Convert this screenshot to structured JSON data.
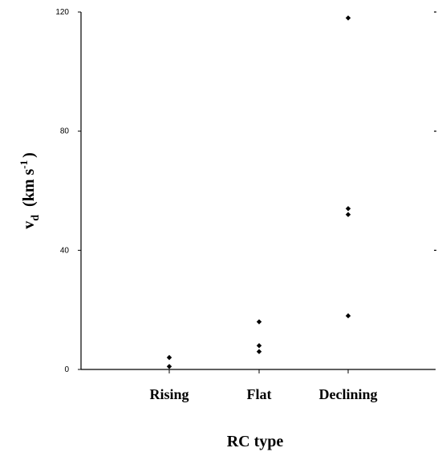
{
  "chart_data": {
    "type": "scatter",
    "title": "",
    "xlabel": "RC type",
    "ylabel": {
      "base": "v",
      "subscript": "d",
      "unit_prefix": "(km s",
      "superscript": "-1",
      "unit_suffix": ")"
    },
    "categories": [
      "Rising",
      "Flat",
      "Declining"
    ],
    "ylim": [
      0,
      120
    ],
    "yticks": [
      0,
      40,
      80,
      120
    ],
    "ytick_labels": [
      "0",
      "40",
      "80",
      "120"
    ],
    "grid": false,
    "legend": "none",
    "marker_color": "#000000",
    "series": [
      {
        "points": [
          {
            "category": "Rising",
            "y": 4
          },
          {
            "category": "Rising",
            "y": 1
          },
          {
            "category": "Flat",
            "y": 16
          },
          {
            "category": "Flat",
            "y": 8
          },
          {
            "category": "Flat",
            "y": 6
          },
          {
            "category": "Declining",
            "y": 118
          },
          {
            "category": "Declining",
            "y": 54
          },
          {
            "category": "Declining",
            "y": 52
          },
          {
            "category": "Declining",
            "y": 18
          }
        ]
      }
    ]
  }
}
